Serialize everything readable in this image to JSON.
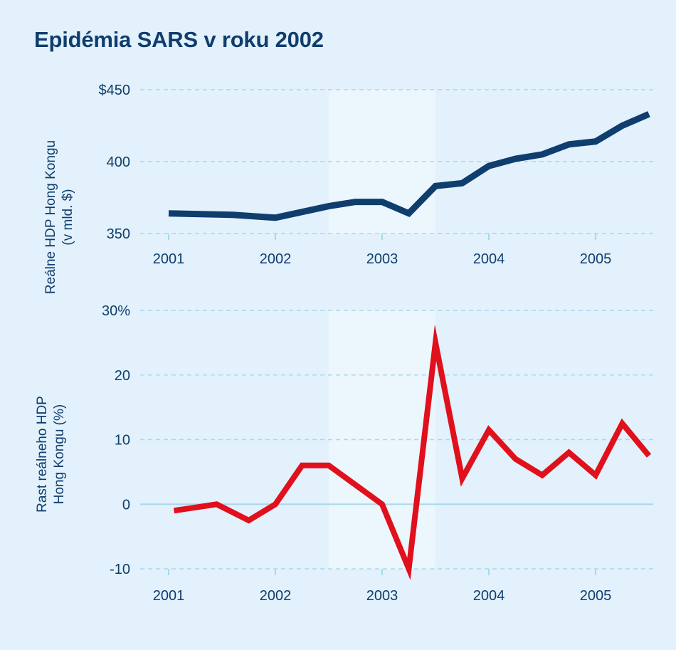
{
  "title": "Epidémia SARS v roku 2002",
  "colors": {
    "background": "#e2f1fb",
    "shaded_period": "#ecf6fd",
    "gridline": "#a9d8ec",
    "axis_text": "#0f3d6e",
    "gdp_line": "#0f3d6e",
    "growth_line": "#e0101c"
  },
  "chart_data": [
    {
      "type": "line",
      "ylabel": [
        "Reálne HDP Hong Kongu",
        "(v mld. $)"
      ],
      "y_ticks": [
        350,
        400,
        450
      ],
      "y_tick_labels": [
        "350",
        "400",
        "$450"
      ],
      "ylim": [
        350,
        450
      ],
      "x_ticks": [
        2001,
        2002,
        2003,
        2004,
        2005
      ],
      "x_tick_labels": [
        "2001",
        "2002",
        "2003",
        "2004",
        "2005"
      ],
      "xlim": [
        2001,
        2005.5
      ],
      "grid": true,
      "shaded_period": [
        2002.5,
        2003.5
      ],
      "series": [
        {
          "x": [
            2001.0,
            2001.6,
            2002.0,
            2002.25,
            2002.5,
            2002.75,
            2003.0,
            2003.25,
            2003.5,
            2003.75,
            2004.0,
            2004.25,
            2004.5,
            2004.75,
            2005.0,
            2005.25,
            2005.5
          ],
          "values": [
            364,
            363,
            361,
            365,
            369,
            372,
            372,
            364,
            383,
            385,
            397,
            402,
            405,
            412,
            414,
            425,
            433
          ]
        }
      ]
    },
    {
      "type": "line",
      "ylabel": [
        "Rast reálneho HDP",
        "Hong Kongu (%)"
      ],
      "y_ticks": [
        -10,
        0,
        10,
        20,
        30
      ],
      "y_tick_labels": [
        "-10",
        "0",
        "10",
        "20",
        "30%"
      ],
      "ylim": [
        -10,
        30
      ],
      "x_ticks": [
        2001,
        2002,
        2003,
        2004,
        2005
      ],
      "x_tick_labels": [
        "2001",
        "2002",
        "2003",
        "2004",
        "2005"
      ],
      "xlim": [
        2001,
        2005.5
      ],
      "grid": true,
      "shaded_period": [
        2002.5,
        2003.5
      ],
      "series": [
        {
          "x": [
            2001.05,
            2001.45,
            2001.75,
            2002.0,
            2002.25,
            2002.5,
            2002.75,
            2003.0,
            2003.25,
            2003.5,
            2003.75,
            2004.0,
            2004.25,
            2004.5,
            2004.75,
            2005.0,
            2005.25,
            2005.5
          ],
          "values": [
            -1,
            0,
            -2.5,
            0,
            6,
            6,
            3,
            0,
            -10,
            25,
            4,
            11.5,
            7,
            4.5,
            8,
            4.5,
            12.5,
            7.5
          ]
        }
      ]
    }
  ]
}
